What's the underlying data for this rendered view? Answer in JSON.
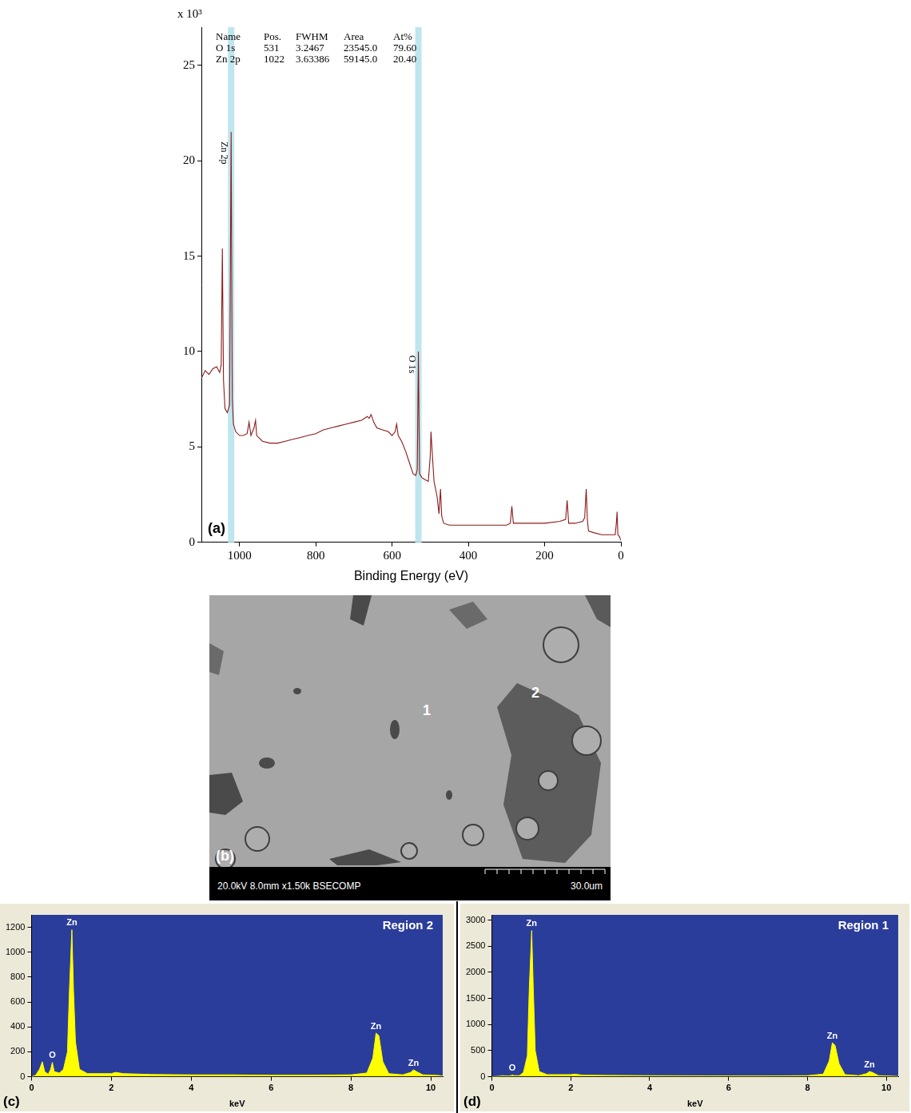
{
  "chart_data": [
    {
      "type": "line",
      "panel": "(a)",
      "x_label": "Binding Energy (eV)",
      "y_label": "x 10³",
      "color": "#8b1a1a",
      "x": [
        1100,
        1090,
        1080,
        1070,
        1060,
        1052,
        1048,
        1045,
        1042,
        1038,
        1032,
        1026,
        1022,
        1019,
        1016,
        1010,
        1000,
        990,
        980,
        975,
        970,
        962,
        958,
        955,
        940,
        920,
        900,
        880,
        860,
        840,
        820,
        800,
        780,
        760,
        740,
        720,
        700,
        680,
        665,
        660,
        655,
        648,
        640,
        625,
        610,
        600,
        592,
        588,
        584,
        575,
        565,
        555,
        545,
        538,
        534,
        531,
        528,
        522,
        515,
        505,
        500,
        498,
        495,
        490,
        482,
        477,
        473,
        470,
        465,
        450,
        400,
        350,
        300,
        290,
        286,
        282,
        250,
        200,
        160,
        145,
        141,
        137,
        120,
        100,
        95,
        91,
        88,
        85,
        70,
        50,
        30,
        15,
        12,
        10,
        8,
        4,
        0
      ],
      "values": [
        8.6,
        9.0,
        8.8,
        9.1,
        9.2,
        8.9,
        9.3,
        15.4,
        8.5,
        7.0,
        6.8,
        7.2,
        21.5,
        7.5,
        6.2,
        5.8,
        5.6,
        5.6,
        5.7,
        6.3,
        5.6,
        6.0,
        6.4,
        5.6,
        5.3,
        5.2,
        5.2,
        5.3,
        5.4,
        5.5,
        5.6,
        5.7,
        5.9,
        6.0,
        6.1,
        6.2,
        6.3,
        6.4,
        6.6,
        6.5,
        6.7,
        6.3,
        6.0,
        5.9,
        5.8,
        5.6,
        5.8,
        6.2,
        5.6,
        5.3,
        4.8,
        4.2,
        3.6,
        3.5,
        3.8,
        10.0,
        3.6,
        3.4,
        3.3,
        3.2,
        4.5,
        5.8,
        4.8,
        3.2,
        2.4,
        1.5,
        2.8,
        1.4,
        1.0,
        0.9,
        0.9,
        0.9,
        0.9,
        1.0,
        1.9,
        1.0,
        1.0,
        1.0,
        1.1,
        1.2,
        2.2,
        1.0,
        1.0,
        1.1,
        1.3,
        2.8,
        1.2,
        0.6,
        0.5,
        0.4,
        0.4,
        0.4,
        1.0,
        1.6,
        0.4,
        0.3,
        0.1
      ],
      "xlim": [
        1100,
        0
      ],
      "xticks": [
        1000,
        800,
        600,
        400,
        200,
        0
      ],
      "ylim": [
        0,
        27
      ],
      "yticks": [
        0,
        5,
        10,
        15,
        20,
        25
      ],
      "grid": false,
      "table": {
        "header": [
          "Name",
          "Pos.",
          "FWHM",
          "Area",
          "At%"
        ],
        "rows": [
          [
            "O 1s",
            "531",
            "3.2467",
            "23545.0",
            "79.60"
          ],
          [
            "Zn 2p",
            "1022",
            "3.63386",
            "59145.0",
            "20.40"
          ]
        ]
      },
      "bands": [
        531,
        1022
      ],
      "annotations": [
        {
          "text": "Zn 2p",
          "x": 1028,
          "y": 21
        },
        {
          "text": "O 1s",
          "x": 537,
          "y": 9.8
        }
      ]
    },
    {
      "type": "area",
      "panel": "(c)",
      "title": "Region 2",
      "x_label": "keV",
      "color": "#ffff00",
      "x": [
        0,
        0.1,
        0.2,
        0.27,
        0.33,
        0.42,
        0.48,
        0.52,
        0.57,
        0.7,
        0.8,
        0.9,
        0.95,
        1.01,
        1.05,
        1.1,
        1.2,
        1.4,
        2.0,
        2.1,
        2.3,
        3,
        4,
        5,
        6,
        7,
        8,
        8.4,
        8.55,
        8.63,
        8.7,
        8.8,
        8.95,
        9.3,
        9.5,
        9.57,
        9.65,
        9.8,
        10.2,
        10.3
      ],
      "values": [
        0,
        10,
        60,
        120,
        40,
        20,
        60,
        115,
        40,
        30,
        60,
        200,
        700,
        1180,
        700,
        280,
        60,
        25,
        25,
        35,
        25,
        18,
        15,
        15,
        12,
        12,
        15,
        30,
        150,
        350,
        330,
        120,
        25,
        15,
        35,
        55,
        40,
        15,
        10,
        5
      ],
      "xlim": [
        0,
        10.3
      ],
      "xticks": [
        0,
        2,
        4,
        6,
        8,
        10
      ],
      "ylim": [
        0,
        1300
      ],
      "yticks": [
        0,
        200,
        400,
        600,
        800,
        1000,
        1200
      ],
      "grid": false,
      "annotations": [
        {
          "text": "Zn",
          "x": 1.01,
          "y": 1180
        },
        {
          "text": "O",
          "x": 0.52,
          "y": 115
        },
        {
          "text": "Zn",
          "x": 8.63,
          "y": 350
        },
        {
          "text": "Zn",
          "x": 9.57,
          "y": 55
        }
      ]
    },
    {
      "type": "area",
      "panel": "(d)",
      "title": "Region 1",
      "x_label": "keV",
      "color": "#ffff00",
      "x": [
        0,
        0.1,
        0.2,
        0.27,
        0.33,
        0.42,
        0.48,
        0.52,
        0.57,
        0.7,
        0.8,
        0.9,
        0.95,
        1.01,
        1.05,
        1.1,
        1.2,
        1.4,
        2.0,
        2.1,
        2.3,
        3,
        4,
        5,
        6,
        7,
        8,
        8.4,
        8.55,
        8.63,
        8.7,
        8.8,
        8.95,
        9.3,
        9.5,
        9.57,
        9.65,
        9.8,
        10.2,
        10.3
      ],
      "values": [
        0,
        5,
        10,
        20,
        15,
        12,
        20,
        30,
        20,
        20,
        80,
        400,
        1700,
        2800,
        1700,
        500,
        100,
        40,
        40,
        50,
        30,
        25,
        20,
        18,
        15,
        15,
        20,
        50,
        300,
        650,
        600,
        250,
        40,
        20,
        60,
        100,
        80,
        20,
        10,
        5
      ],
      "xlim": [
        0,
        10.3
      ],
      "xticks": [
        0,
        2,
        4,
        6,
        8,
        10
      ],
      "ylim": [
        0,
        3100
      ],
      "yticks": [
        0,
        500,
        1000,
        1500,
        2000,
        2500,
        3000
      ],
      "grid": false,
      "annotations": [
        {
          "text": "Zn",
          "x": 1.01,
          "y": 2800
        },
        {
          "text": "O",
          "x": 0.52,
          "y": 30
        },
        {
          "text": "Zn",
          "x": 8.63,
          "y": 650
        },
        {
          "text": "Zn",
          "x": 9.57,
          "y": 100
        }
      ]
    }
  ],
  "image_panel": {
    "panel": "(b)",
    "labels": [
      "1",
      "2"
    ],
    "caption": "20.0kV 8.0mm x1.50k BSECOMP",
    "scale_bar": "30.0um"
  }
}
